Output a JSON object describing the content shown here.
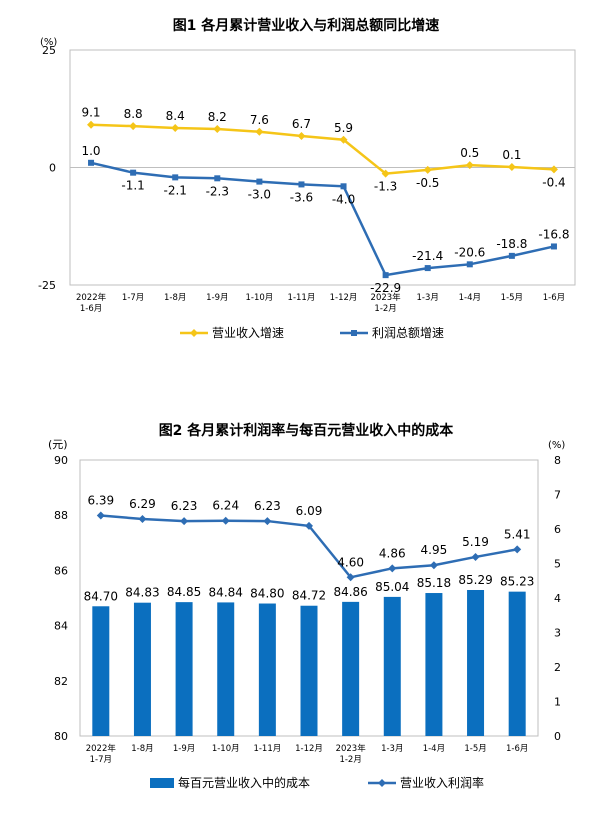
{
  "chart_data": [
    {
      "type": "line",
      "title": "图1  各月累计营业收入与利润总额同比增速",
      "unit_label": "(%)",
      "ylim": [
        -25,
        25
      ],
      "y_ticks": [
        "25",
        "0",
        "-25"
      ],
      "y_tick_values": [
        25,
        0,
        -25
      ],
      "categories": [
        [
          "2022年",
          "1-6月"
        ],
        [
          "1-7月"
        ],
        [
          "1-8月"
        ],
        [
          "1-9月"
        ],
        [
          "1-10月"
        ],
        [
          "1-11月"
        ],
        [
          "1-12月"
        ],
        [
          "2023年",
          "1-2月"
        ],
        [
          "1-3月"
        ],
        [
          "1-4月"
        ],
        [
          "1-5月"
        ],
        [
          "1-6月"
        ]
      ],
      "colors": {
        "revenue": "#F5C518",
        "profit": "#2E6DB4"
      },
      "series": [
        {
          "name": "营业收入增速",
          "values": [
            9.1,
            8.8,
            8.4,
            8.2,
            7.6,
            6.7,
            5.9,
            -1.3,
            -0.5,
            0.5,
            0.1,
            -0.4
          ],
          "labels": [
            "9.1",
            "8.8",
            "8.4",
            "8.2",
            "7.6",
            "6.7",
            "5.9",
            "-1.3",
            "-0.5",
            "0.5",
            "0.1",
            "-0.4"
          ]
        },
        {
          "name": "利润总额增速",
          "values": [
            1.0,
            -1.1,
            -2.1,
            -2.3,
            -3.0,
            -3.6,
            -4.0,
            -22.9,
            -21.4,
            -20.6,
            -18.8,
            -16.8
          ],
          "labels": [
            "1.0",
            "-1.1",
            "-2.1",
            "-2.3",
            "-3.0",
            "-3.6",
            "-4.0",
            "-22.9",
            "-21.4",
            "-20.6",
            "-18.8",
            "-16.8"
          ]
        }
      ],
      "legend": [
        "营业收入增速",
        "利润总额增速"
      ],
      "legend_position": "bottom"
    },
    {
      "type": "bar+line",
      "title": "图2  各月累计利润率与每百元营业收入中的成本",
      "left_unit_label": "(元)",
      "right_unit_label": "(%)",
      "ylim_left": [
        80,
        90
      ],
      "ylim_right": [
        0,
        8
      ],
      "y_ticks_left": [
        "90",
        "88",
        "86",
        "84",
        "82",
        "80"
      ],
      "y_tick_values_left": [
        90,
        88,
        86,
        84,
        82,
        80
      ],
      "y_ticks_right": [
        "8",
        "7",
        "6",
        "5",
        "4",
        "3",
        "2",
        "1",
        "0"
      ],
      "y_tick_values_right": [
        8,
        7,
        6,
        5,
        4,
        3,
        2,
        1,
        0
      ],
      "categories": [
        [
          "2022年",
          "1-7月"
        ],
        [
          "1-8月"
        ],
        [
          "1-9月"
        ],
        [
          "1-10月"
        ],
        [
          "1-11月"
        ],
        [
          "1-12月"
        ],
        [
          "2023年",
          "1-2月"
        ],
        [
          "1-3月"
        ],
        [
          "1-4月"
        ],
        [
          "1-5月"
        ],
        [
          "1-6月"
        ]
      ],
      "colors": {
        "bars": "#0B6FBF",
        "line": "#2E6DB4"
      },
      "series": [
        {
          "name": "每百元营业收入中的成本",
          "kind": "bar",
          "axis": "left",
          "values": [
            84.7,
            84.83,
            84.85,
            84.84,
            84.8,
            84.72,
            84.86,
            85.04,
            85.18,
            85.29,
            85.23
          ],
          "labels": [
            "84.70",
            "84.83",
            "84.85",
            "84.84",
            "84.80",
            "84.72",
            "84.86",
            "85.04",
            "85.18",
            "85.29",
            "85.23"
          ]
        },
        {
          "name": "营业收入利润率",
          "kind": "line",
          "axis": "right",
          "values": [
            6.39,
            6.29,
            6.23,
            6.24,
            6.23,
            6.09,
            4.6,
            4.86,
            4.95,
            5.19,
            5.41
          ],
          "labels": [
            "6.39",
            "6.29",
            "6.23",
            "6.24",
            "6.23",
            "6.09",
            "4.60",
            "4.86",
            "4.95",
            "5.19",
            "5.41"
          ]
        }
      ],
      "legend": [
        "每百元营业收入中的成本",
        "营业收入利润率"
      ],
      "legend_position": "bottom"
    }
  ]
}
